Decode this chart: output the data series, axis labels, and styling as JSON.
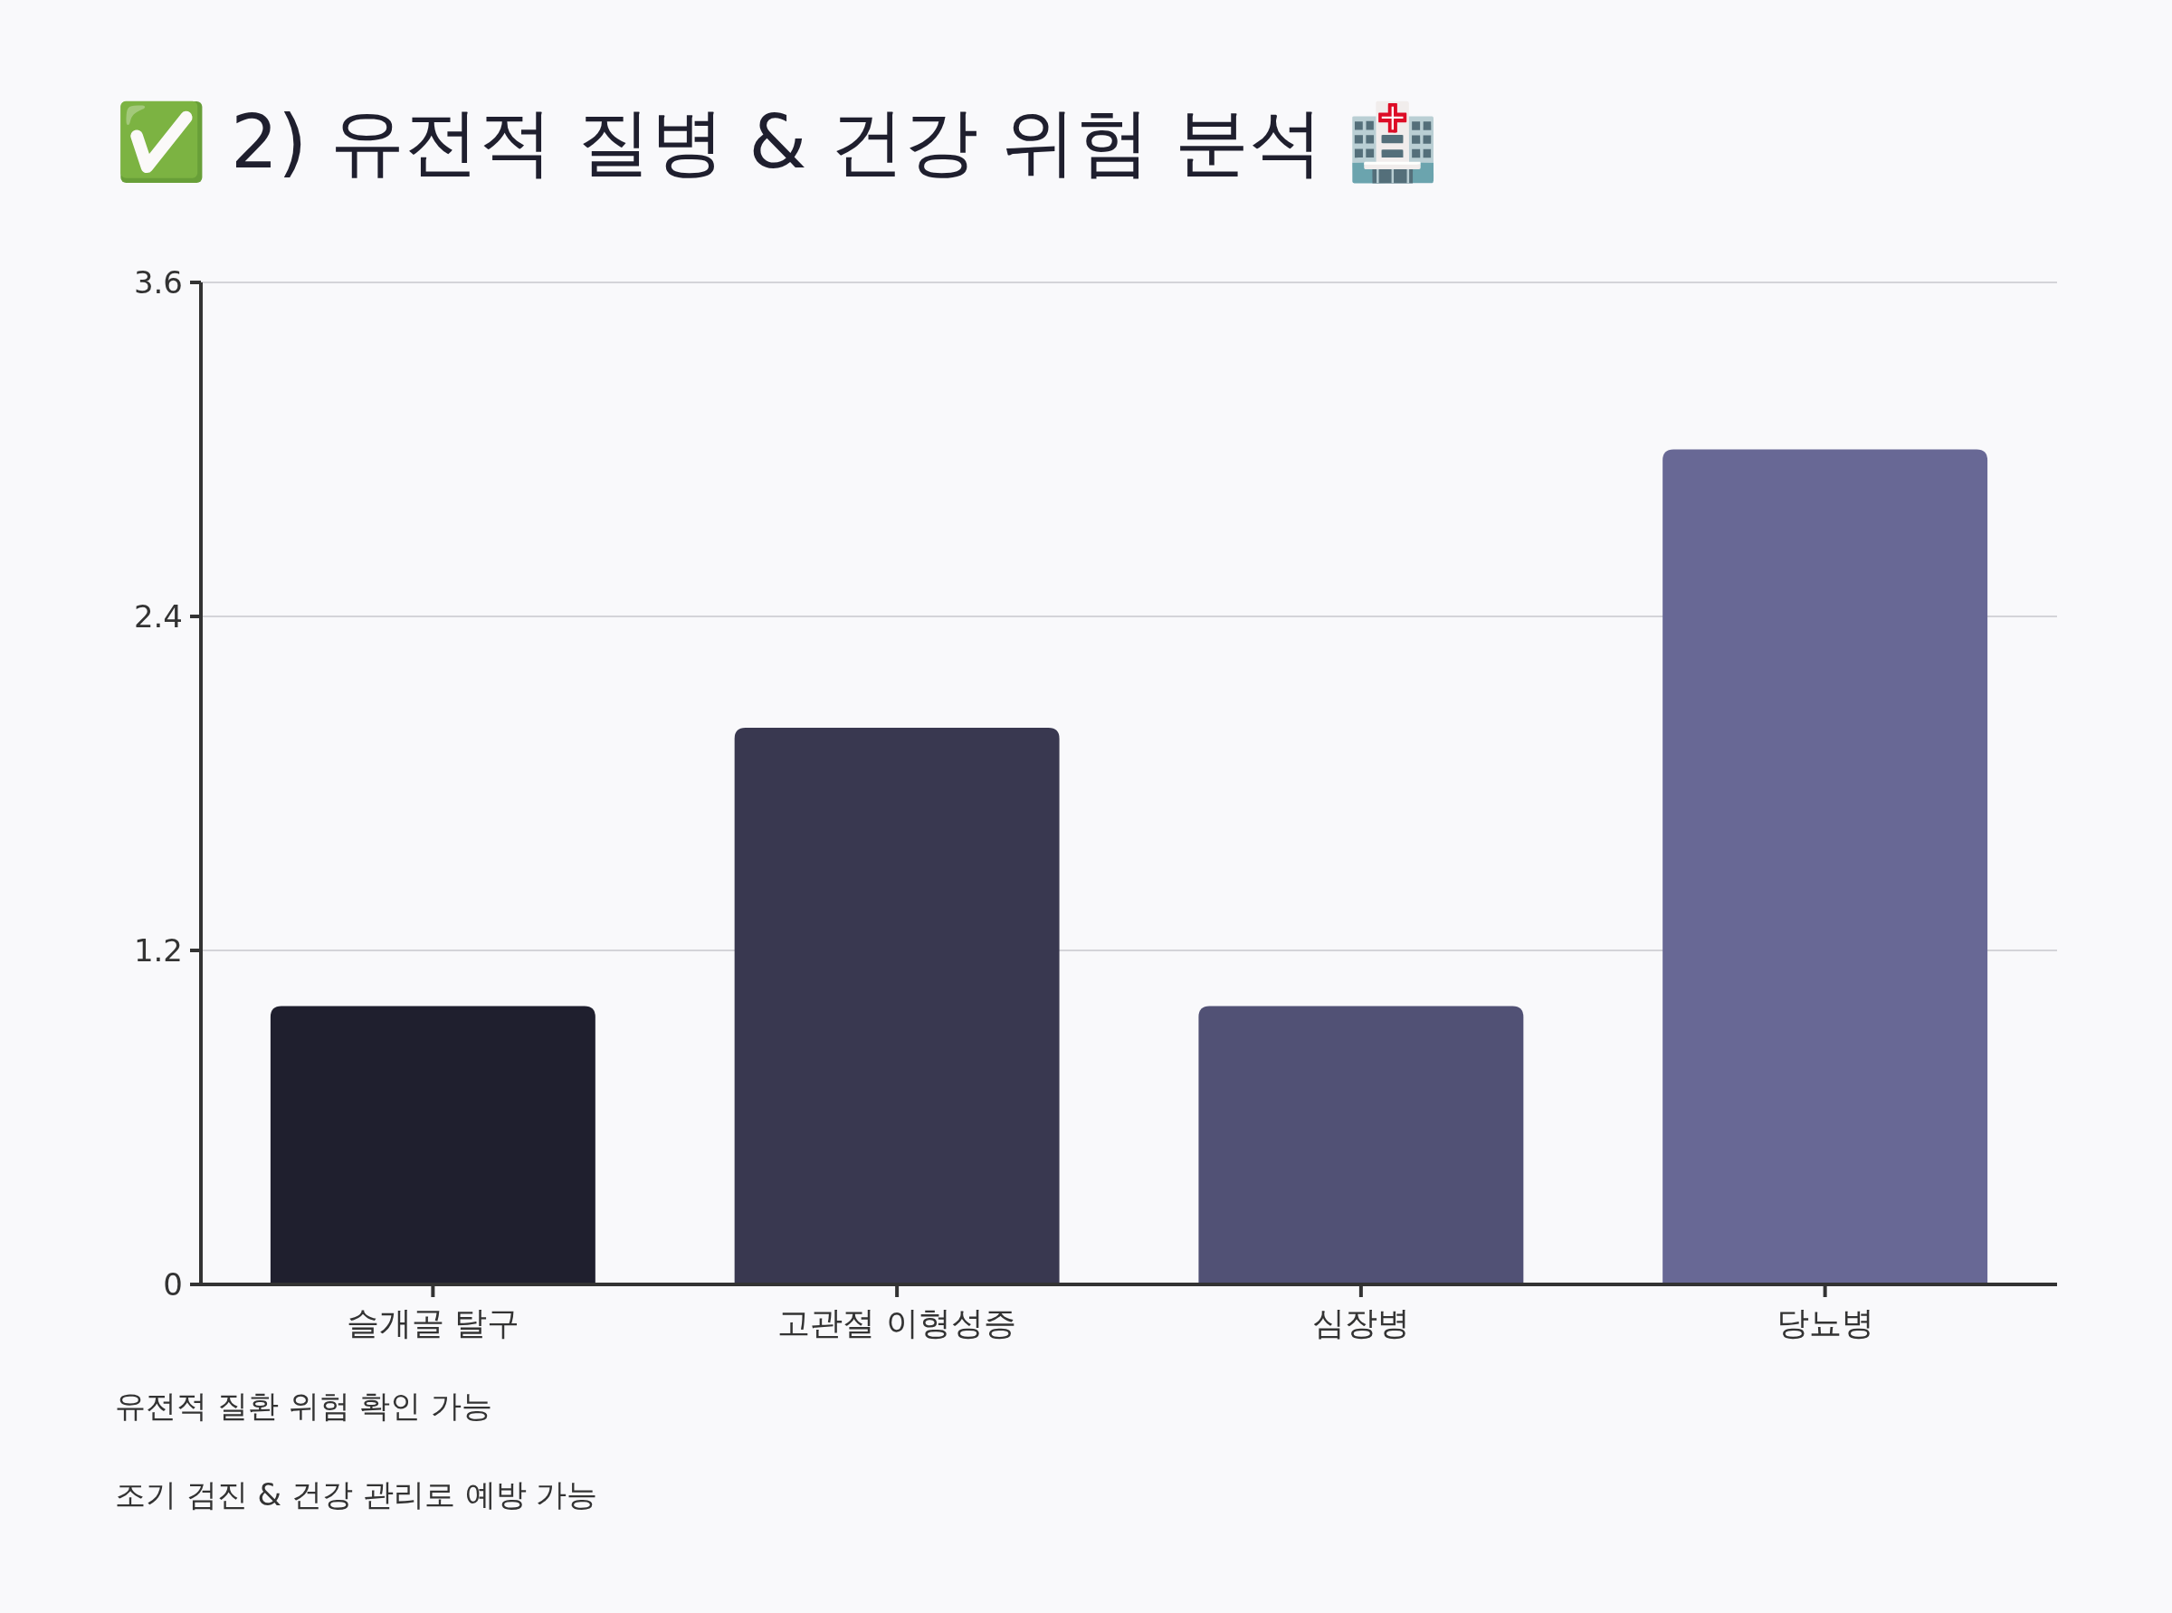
{
  "chart_data": {
    "type": "bar",
    "title": "✅ 2) 유전적 질병 & 건강 위험 분석 🏥",
    "categories": [
      "슬개골 탈구",
      "고관절 이형성증",
      "심장병",
      "당뇨병"
    ],
    "values": [
      1,
      2,
      1,
      3
    ],
    "colors": [
      "#1f1f2e",
      "#393850",
      "#515175",
      "#686895"
    ],
    "ylim": [
      0,
      3.6
    ],
    "yticks": [
      0,
      1.2,
      2.4,
      3.6
    ],
    "grid": "y",
    "annotations": [
      "유전적 질환 위험 확인 가능",
      "조기 검진 & 건강 관리로 예방 가능"
    ]
  }
}
